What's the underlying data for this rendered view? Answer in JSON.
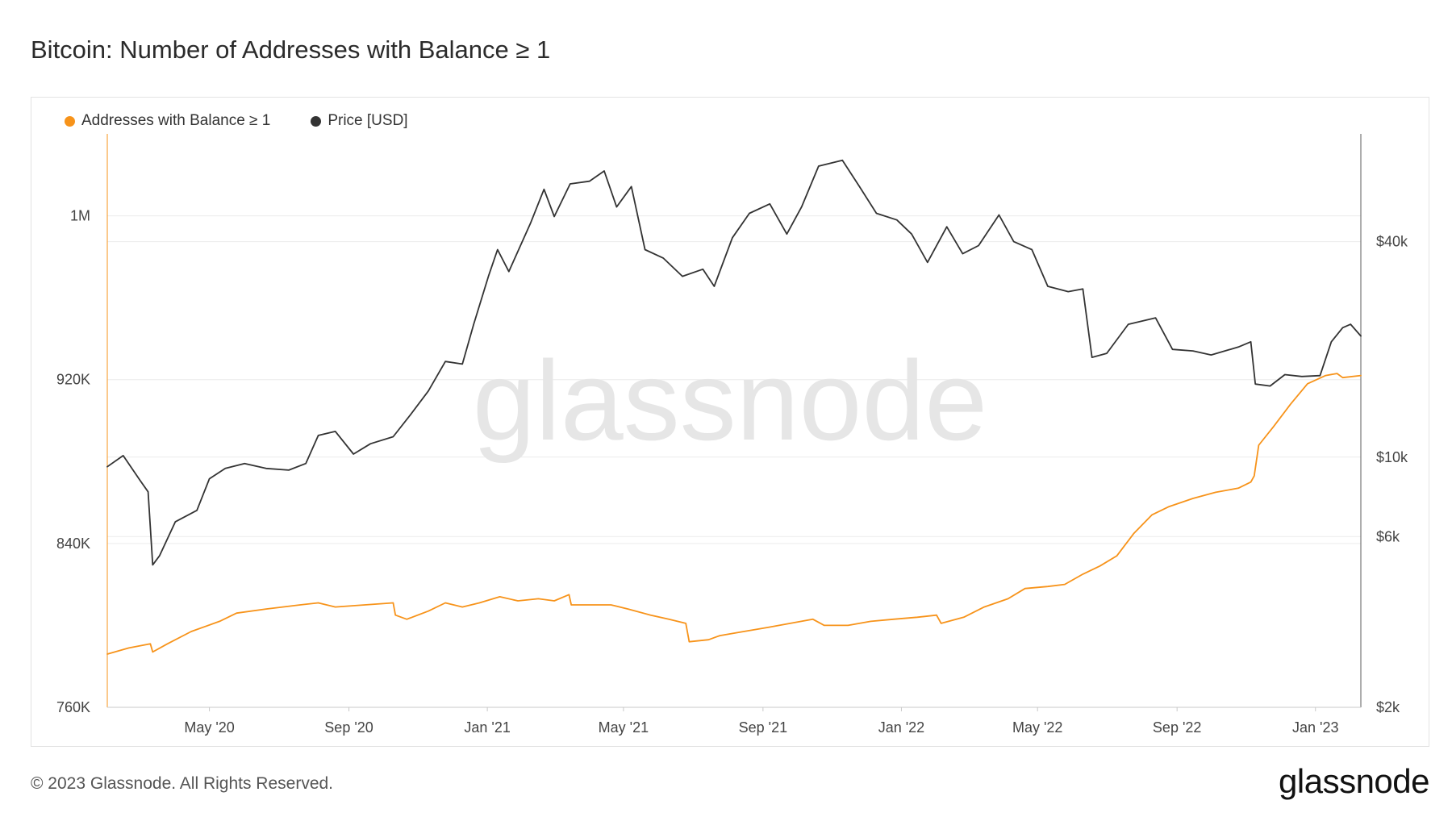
{
  "header": {
    "title": "Bitcoin: Number of Addresses with Balance ≥ 1"
  },
  "footer": {
    "copyright": "© 2023 Glassnode. All Rights Reserved.",
    "logo_text": "glassnode"
  },
  "watermark": "glassnode",
  "colors": {
    "addresses": "#f7931a",
    "price": "#333333",
    "grid": "#ececec",
    "axis": "#c8c8c8",
    "watermark": "#e6e6e6"
  },
  "chart_data": {
    "type": "line",
    "legend": [
      "Addresses with Balance ≥ 1",
      "Price [USD]"
    ],
    "legend_position": "top-left",
    "grid": true,
    "x_range": [
      "2020-02-01",
      "2023-02-10"
    ],
    "x_ticks": [
      {
        "date": "2020-05-01",
        "label": "May '20"
      },
      {
        "date": "2020-09-01",
        "label": "Sep '20"
      },
      {
        "date": "2021-01-01",
        "label": "Jan '21"
      },
      {
        "date": "2021-05-01",
        "label": "May '21"
      },
      {
        "date": "2021-09-01",
        "label": "Sep '21"
      },
      {
        "date": "2022-01-01",
        "label": "Jan '22"
      },
      {
        "date": "2022-05-01",
        "label": "May '22"
      },
      {
        "date": "2022-09-01",
        "label": "Sep '22"
      },
      {
        "date": "2023-01-01",
        "label": "Jan '23"
      }
    ],
    "y_left": {
      "min": 760000,
      "max": 1040000,
      "scale": "linear",
      "ticks": [
        {
          "value": 760000,
          "label": "760K"
        },
        {
          "value": 840000,
          "label": "840K"
        },
        {
          "value": 920000,
          "label": "920K"
        },
        {
          "value": 1000000,
          "label": "1M"
        }
      ]
    },
    "y_right": {
      "min": 2000,
      "max": 80000,
      "scale": "log",
      "ticks": [
        {
          "value": 2000,
          "label": "$2k"
        },
        {
          "value": 6000,
          "label": "$6k"
        },
        {
          "value": 10000,
          "label": "$10k"
        },
        {
          "value": 40000,
          "label": "$40k"
        }
      ]
    },
    "series": [
      {
        "name": "Addresses with Balance ≥ 1",
        "axis": "left",
        "points": [
          [
            "2020-02-01",
            786000
          ],
          [
            "2020-02-20",
            789000
          ],
          [
            "2020-03-10",
            791000
          ],
          [
            "2020-03-12",
            787000
          ],
          [
            "2020-03-25",
            791000
          ],
          [
            "2020-04-15",
            797000
          ],
          [
            "2020-05-10",
            802000
          ],
          [
            "2020-05-25",
            806000
          ],
          [
            "2020-06-20",
            808000
          ],
          [
            "2020-07-20",
            810000
          ],
          [
            "2020-08-05",
            811000
          ],
          [
            "2020-08-20",
            809000
          ],
          [
            "2020-09-15",
            810000
          ],
          [
            "2020-10-10",
            811000
          ],
          [
            "2020-10-12",
            805000
          ],
          [
            "2020-10-22",
            803000
          ],
          [
            "2020-11-10",
            807000
          ],
          [
            "2020-11-25",
            811000
          ],
          [
            "2020-12-10",
            809000
          ],
          [
            "2020-12-25",
            811000
          ],
          [
            "2021-01-12",
            814000
          ],
          [
            "2021-01-28",
            812000
          ],
          [
            "2021-02-15",
            813000
          ],
          [
            "2021-03-01",
            812000
          ],
          [
            "2021-03-14",
            815000
          ],
          [
            "2021-03-16",
            810000
          ],
          [
            "2021-04-01",
            810000
          ],
          [
            "2021-04-20",
            810000
          ],
          [
            "2021-05-05",
            808000
          ],
          [
            "2021-05-25",
            805000
          ],
          [
            "2021-06-10",
            803000
          ],
          [
            "2021-06-25",
            801000
          ],
          [
            "2021-06-28",
            792000
          ],
          [
            "2021-07-15",
            793000
          ],
          [
            "2021-07-25",
            795000
          ],
          [
            "2021-08-15",
            797000
          ],
          [
            "2021-09-05",
            799000
          ],
          [
            "2021-09-25",
            801000
          ],
          [
            "2021-10-15",
            803000
          ],
          [
            "2021-10-25",
            800000
          ],
          [
            "2021-11-15",
            800000
          ],
          [
            "2021-12-05",
            802000
          ],
          [
            "2021-12-25",
            803000
          ],
          [
            "2022-01-15",
            804000
          ],
          [
            "2022-02-01",
            805000
          ],
          [
            "2022-02-05",
            801000
          ],
          [
            "2022-02-25",
            804000
          ],
          [
            "2022-03-15",
            809000
          ],
          [
            "2022-04-05",
            813000
          ],
          [
            "2022-04-20",
            818000
          ],
          [
            "2022-05-10",
            819000
          ],
          [
            "2022-05-25",
            820000
          ],
          [
            "2022-06-10",
            825000
          ],
          [
            "2022-06-25",
            829000
          ],
          [
            "2022-07-10",
            834000
          ],
          [
            "2022-07-25",
            845000
          ],
          [
            "2022-08-10",
            854000
          ],
          [
            "2022-08-25",
            858000
          ],
          [
            "2022-09-15",
            862000
          ],
          [
            "2022-10-05",
            865000
          ],
          [
            "2022-10-25",
            867000
          ],
          [
            "2022-11-05",
            870000
          ],
          [
            "2022-11-08",
            873000
          ],
          [
            "2022-11-12",
            888000
          ],
          [
            "2022-11-25",
            897000
          ],
          [
            "2022-12-10",
            908000
          ],
          [
            "2022-12-25",
            918000
          ],
          [
            "2023-01-10",
            922000
          ],
          [
            "2023-01-20",
            923000
          ],
          [
            "2023-01-25",
            921000
          ],
          [
            "2023-02-10",
            922000
          ]
        ]
      },
      {
        "name": "Price [USD]",
        "axis": "right",
        "points": [
          [
            "2020-02-01",
            9400
          ],
          [
            "2020-02-15",
            10100
          ],
          [
            "2020-03-01",
            8600
          ],
          [
            "2020-03-08",
            8000
          ],
          [
            "2020-03-12",
            5000
          ],
          [
            "2020-03-18",
            5300
          ],
          [
            "2020-04-01",
            6600
          ],
          [
            "2020-04-20",
            7100
          ],
          [
            "2020-05-01",
            8700
          ],
          [
            "2020-05-15",
            9300
          ],
          [
            "2020-06-01",
            9600
          ],
          [
            "2020-06-20",
            9300
          ],
          [
            "2020-07-10",
            9200
          ],
          [
            "2020-07-25",
            9600
          ],
          [
            "2020-08-05",
            11500
          ],
          [
            "2020-08-20",
            11800
          ],
          [
            "2020-09-05",
            10200
          ],
          [
            "2020-09-20",
            10900
          ],
          [
            "2020-10-10",
            11400
          ],
          [
            "2020-10-25",
            13100
          ],
          [
            "2020-11-10",
            15300
          ],
          [
            "2020-11-25",
            18500
          ],
          [
            "2020-12-10",
            18200
          ],
          [
            "2020-12-20",
            23500
          ],
          [
            "2021-01-02",
            32000
          ],
          [
            "2021-01-10",
            38000
          ],
          [
            "2021-01-20",
            33000
          ],
          [
            "2021-02-08",
            45000
          ],
          [
            "2021-02-20",
            56000
          ],
          [
            "2021-03-01",
            47000
          ],
          [
            "2021-03-15",
            58000
          ],
          [
            "2021-04-01",
            59000
          ],
          [
            "2021-04-14",
            63000
          ],
          [
            "2021-04-25",
            50000
          ],
          [
            "2021-05-08",
            57000
          ],
          [
            "2021-05-20",
            38000
          ],
          [
            "2021-06-05",
            36000
          ],
          [
            "2021-06-22",
            32000
          ],
          [
            "2021-07-10",
            33500
          ],
          [
            "2021-07-20",
            30000
          ],
          [
            "2021-08-05",
            41000
          ],
          [
            "2021-08-20",
            48000
          ],
          [
            "2021-09-07",
            51000
          ],
          [
            "2021-09-22",
            42000
          ],
          [
            "2021-10-05",
            50000
          ],
          [
            "2021-10-20",
            65000
          ],
          [
            "2021-11-10",
            67500
          ],
          [
            "2021-11-25",
            57000
          ],
          [
            "2021-12-10",
            48000
          ],
          [
            "2021-12-28",
            46000
          ],
          [
            "2022-01-10",
            42000
          ],
          [
            "2022-01-24",
            35000
          ],
          [
            "2022-02-10",
            44000
          ],
          [
            "2022-02-24",
            37000
          ],
          [
            "2022-03-10",
            39000
          ],
          [
            "2022-03-28",
            47500
          ],
          [
            "2022-04-10",
            40000
          ],
          [
            "2022-04-26",
            38000
          ],
          [
            "2022-05-10",
            30000
          ],
          [
            "2022-05-28",
            29000
          ],
          [
            "2022-06-10",
            29500
          ],
          [
            "2022-06-18",
            19000
          ],
          [
            "2022-07-01",
            19500
          ],
          [
            "2022-07-20",
            23500
          ],
          [
            "2022-08-13",
            24500
          ],
          [
            "2022-08-28",
            20000
          ],
          [
            "2022-09-15",
            19800
          ],
          [
            "2022-10-01",
            19300
          ],
          [
            "2022-10-25",
            20300
          ],
          [
            "2022-11-05",
            21000
          ],
          [
            "2022-11-09",
            16000
          ],
          [
            "2022-11-22",
            15800
          ],
          [
            "2022-12-05",
            17000
          ],
          [
            "2022-12-20",
            16800
          ],
          [
            "2023-01-05",
            16900
          ],
          [
            "2023-01-15",
            21000
          ],
          [
            "2023-01-25",
            23000
          ],
          [
            "2023-02-01",
            23500
          ],
          [
            "2023-02-10",
            21800
          ]
        ]
      }
    ]
  }
}
